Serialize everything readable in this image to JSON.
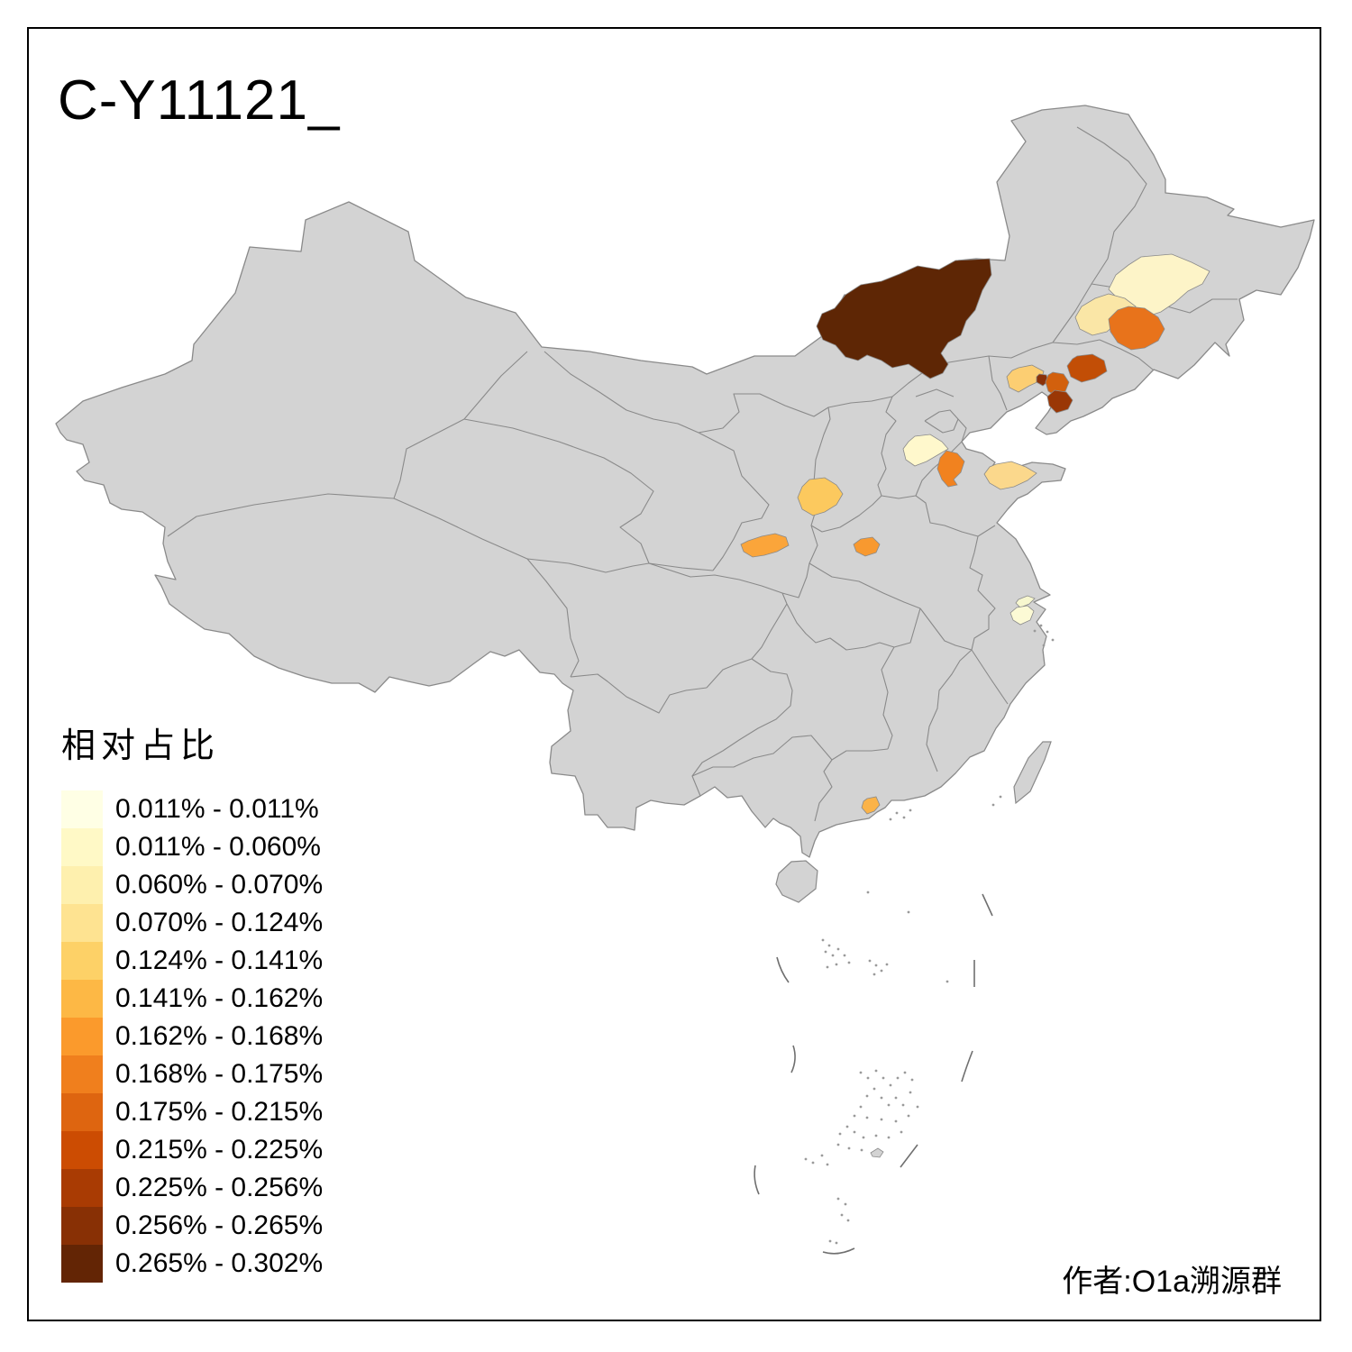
{
  "title": "C-Y11121_",
  "attribution": "作者:O1a溯源群",
  "legend": {
    "title": "相对占比",
    "items": [
      {
        "range": "0.011% - 0.011%",
        "color": "#FFFFE5"
      },
      {
        "range": "0.011% - 0.060%",
        "color": "#FFF9C6"
      },
      {
        "range": "0.060% - 0.070%",
        "color": "#FEF0AE"
      },
      {
        "range": "0.070% - 0.124%",
        "color": "#FEE391"
      },
      {
        "range": "0.124% - 0.141%",
        "color": "#FDD167"
      },
      {
        "range": "0.141% - 0.162%",
        "color": "#FDB845"
      },
      {
        "range": "0.162% - 0.168%",
        "color": "#FB9A2C"
      },
      {
        "range": "0.168% - 0.175%",
        "color": "#F07F1D"
      },
      {
        "range": "0.175% - 0.215%",
        "color": "#DE6510"
      },
      {
        "range": "0.215% - 0.225%",
        "color": "#CC4C02"
      },
      {
        "range": "0.225% - 0.256%",
        "color": "#A93B03"
      },
      {
        "range": "0.256% - 0.265%",
        "color": "#883005"
      },
      {
        "range": "0.265% - 0.302%",
        "color": "#632505"
      }
    ]
  },
  "map": {
    "base_fill": "#D3D3D3",
    "border_color": "#8A8A8A",
    "background": "#FFFFFF",
    "frame_color": "#000000"
  },
  "chart_data": {
    "type": "choropleth_map",
    "title": "C-Y11121_",
    "legend_title": "相对占比",
    "unit": "%",
    "legend_position": "bottom-left",
    "bins": [
      "0.011% - 0.011%",
      "0.011% - 0.060%",
      "0.060% - 0.070%",
      "0.070% - 0.124%",
      "0.124% - 0.141%",
      "0.141% - 0.162%",
      "0.162% - 0.168%",
      "0.168% - 0.175%",
      "0.175% - 0.215%",
      "0.215% - 0.225%",
      "0.225% - 0.256%",
      "0.256% - 0.265%",
      "0.265% - 0.302%"
    ],
    "regions": [
      {
        "id": "r1",
        "location_hint": "inner-mongolia-east-large",
        "range": "0.265% - 0.302%",
        "color": "#5E2605"
      },
      {
        "id": "r2",
        "location_hint": "northeast-upper-pale",
        "range": "0.011% - 0.060%",
        "color": "#FDF4C8"
      },
      {
        "id": "r3",
        "location_hint": "northeast-middle-cream",
        "range": "0.070% - 0.124%",
        "color": "#FAE6A6"
      },
      {
        "id": "r4",
        "location_hint": "northeast-central-orange",
        "range": "0.175% - 0.215%",
        "color": "#E8731B"
      },
      {
        "id": "r5",
        "location_hint": "liaoning-west-tan",
        "range": "0.124% - 0.141%",
        "color": "#FCCE72"
      },
      {
        "id": "r6",
        "location_hint": "liaoning-small-dark-blob",
        "range": "0.256% - 0.265%",
        "color": "#8A3108"
      },
      {
        "id": "r7",
        "location_hint": "liaoning-center-orange",
        "range": "0.215% - 0.225%",
        "color": "#D2600D"
      },
      {
        "id": "r8",
        "location_hint": "liaoning-south-dark-brown",
        "range": "0.225% - 0.256%",
        "color": "#9A3705"
      },
      {
        "id": "r9",
        "location_hint": "liaoning-east-dark-orange",
        "range": "0.215% - 0.225%",
        "color": "#C24E06"
      },
      {
        "id": "r10",
        "location_hint": "shandong-north-pale",
        "range": "0.011% - 0.060%",
        "color": "#FFF8CC"
      },
      {
        "id": "r11",
        "location_hint": "shandong-central-orange",
        "range": "0.168% - 0.175%",
        "color": "#F1821F"
      },
      {
        "id": "r12",
        "location_hint": "shandong-peninsula-tan",
        "range": "0.070% - 0.124%",
        "color": "#FBD88C"
      },
      {
        "id": "r13",
        "location_hint": "shanxi-southwest-tan",
        "range": "0.124% - 0.141%",
        "color": "#FCC95E"
      },
      {
        "id": "r14",
        "location_hint": "shaanxi-central-orange",
        "range": "0.141% - 0.162%",
        "color": "#FBA53A"
      },
      {
        "id": "r15",
        "location_hint": "henan-west-orange",
        "range": "0.162% - 0.168%",
        "color": "#F8992F"
      },
      {
        "id": "r16",
        "location_hint": "guangdong-pearl-delta-orange",
        "range": "0.141% - 0.162%",
        "color": "#FBB348"
      },
      {
        "id": "r17",
        "location_hint": "yangtze-estuary-sliver-pale",
        "range": "0.011% - 0.011%",
        "color": "#F7F7CF"
      },
      {
        "id": "r18",
        "location_hint": "shanghai-area-pale",
        "range": "0.011% - 0.011%",
        "color": "#FCFAD5"
      }
    ]
  }
}
